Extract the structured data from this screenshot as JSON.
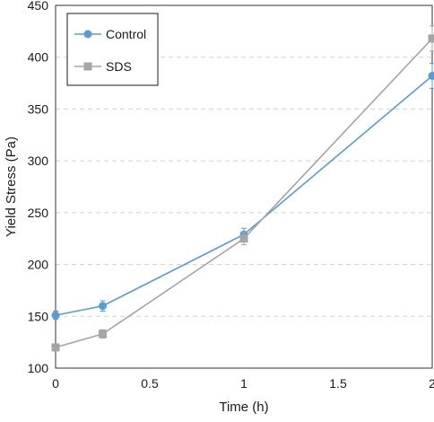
{
  "chart_data": {
    "type": "line",
    "title": "",
    "xlabel": "Time (h)",
    "ylabel": "Yield Stress (Pa)",
    "xlim": [
      0,
      2
    ],
    "ylim": [
      100,
      450
    ],
    "xticks": [
      0,
      0.5,
      1,
      1.5,
      2
    ],
    "xtick_labels": [
      "0",
      "0.5",
      "1",
      "1.5",
      "2"
    ],
    "yticks": [
      100,
      150,
      200,
      250,
      300,
      350,
      400,
      450
    ],
    "ytick_labels": [
      "100",
      "150",
      "200",
      "250",
      "300",
      "350",
      "400",
      "450"
    ],
    "grid": "horizontal dashed",
    "legend_position": "top-left",
    "error_bars": true,
    "series": [
      {
        "name": "Control",
        "color": "#5b9bd5",
        "marker": "circle",
        "x": [
          0,
          0.25,
          1,
          2
        ],
        "y": [
          151,
          160,
          229,
          382
        ],
        "err": [
          4,
          5,
          6,
          12
        ]
      },
      {
        "name": "SDS",
        "color": "#a5a5a5",
        "marker": "square",
        "x": [
          0,
          0.25,
          1,
          2
        ],
        "y": [
          120,
          133,
          225,
          418
        ],
        "err": [
          3,
          4,
          6,
          12
        ]
      }
    ]
  }
}
